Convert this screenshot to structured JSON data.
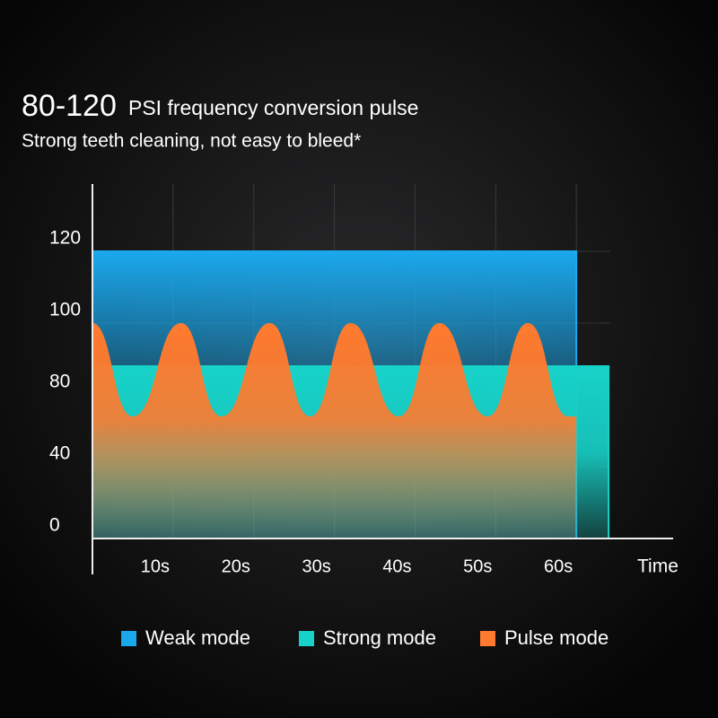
{
  "chart_data": {
    "type": "area",
    "title": "80-120",
    "title_suffix": "PSI frequency conversion pulse",
    "subtitle": "Strong teeth cleaning, not easy to bleed*",
    "x_label": "Time",
    "xlim": [
      0,
      72
    ],
    "xticks": [
      {
        "value": 10,
        "label": "10s"
      },
      {
        "value": 20,
        "label": "20s"
      },
      {
        "value": 30,
        "label": "30s"
      },
      {
        "value": 40,
        "label": "40s"
      },
      {
        "value": 50,
        "label": "50s"
      },
      {
        "value": 60,
        "label": "60s"
      }
    ],
    "ylim": [
      0,
      140
    ],
    "yticks": [
      0,
      40,
      80,
      100,
      120
    ],
    "series": [
      {
        "name": "Weak mode",
        "color": "#1aa8ec",
        "x": [
          0,
          60
        ],
        "values": [
          120,
          120
        ]
      },
      {
        "name": "Strong mode",
        "color": "#17d2c8",
        "x": [
          0,
          64
        ],
        "values": [
          88,
          88
        ]
      },
      {
        "name": "Pulse mode",
        "color": "#ff7a2e",
        "x": [
          0,
          5,
          11,
          16,
          22,
          27,
          32,
          38,
          43,
          49,
          54,
          59,
          60
        ],
        "values": [
          100,
          68,
          100,
          68,
          100,
          68,
          100,
          68,
          100,
          68,
          100,
          68,
          68
        ]
      }
    ]
  }
}
